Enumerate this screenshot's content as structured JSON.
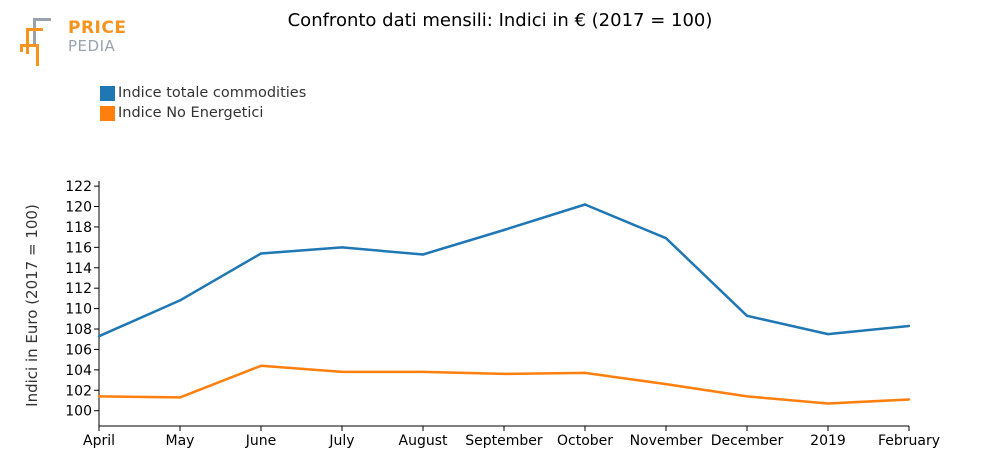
{
  "brand": {
    "line1": "PRICE",
    "line2": "PEDIA"
  },
  "colors": {
    "total": "#1f77b4",
    "non_energy": "#ff7f0e",
    "logo_orange": "#f7941d",
    "logo_gray": "#9aa3ad"
  },
  "chart_data": {
    "type": "line",
    "title": "Confronto dati mensili: Indici in € (2017 = 100)",
    "xlabel": "",
    "ylabel": "Indici in Euro (2017 = 100)",
    "categories": [
      "April",
      "May",
      "June",
      "July",
      "August",
      "September",
      "October",
      "November",
      "December",
      "2019",
      "February"
    ],
    "ylim": [
      98.5,
      122.5
    ],
    "yticks": [
      100,
      102,
      104,
      106,
      108,
      110,
      112,
      114,
      116,
      118,
      120,
      122
    ],
    "legend_position": "top-left",
    "grid": false,
    "series": [
      {
        "name": "Indice totale commodities",
        "color": "#1f77b4",
        "values": [
          107.3,
          110.8,
          115.4,
          116.0,
          115.3,
          117.7,
          120.2,
          116.9,
          109.3,
          107.5,
          108.3
        ]
      },
      {
        "name": "Indice No Energetici",
        "color": "#ff7f0e",
        "values": [
          101.4,
          101.3,
          104.4,
          103.8,
          103.8,
          103.6,
          103.7,
          102.6,
          101.4,
          100.7,
          101.1
        ]
      }
    ]
  }
}
